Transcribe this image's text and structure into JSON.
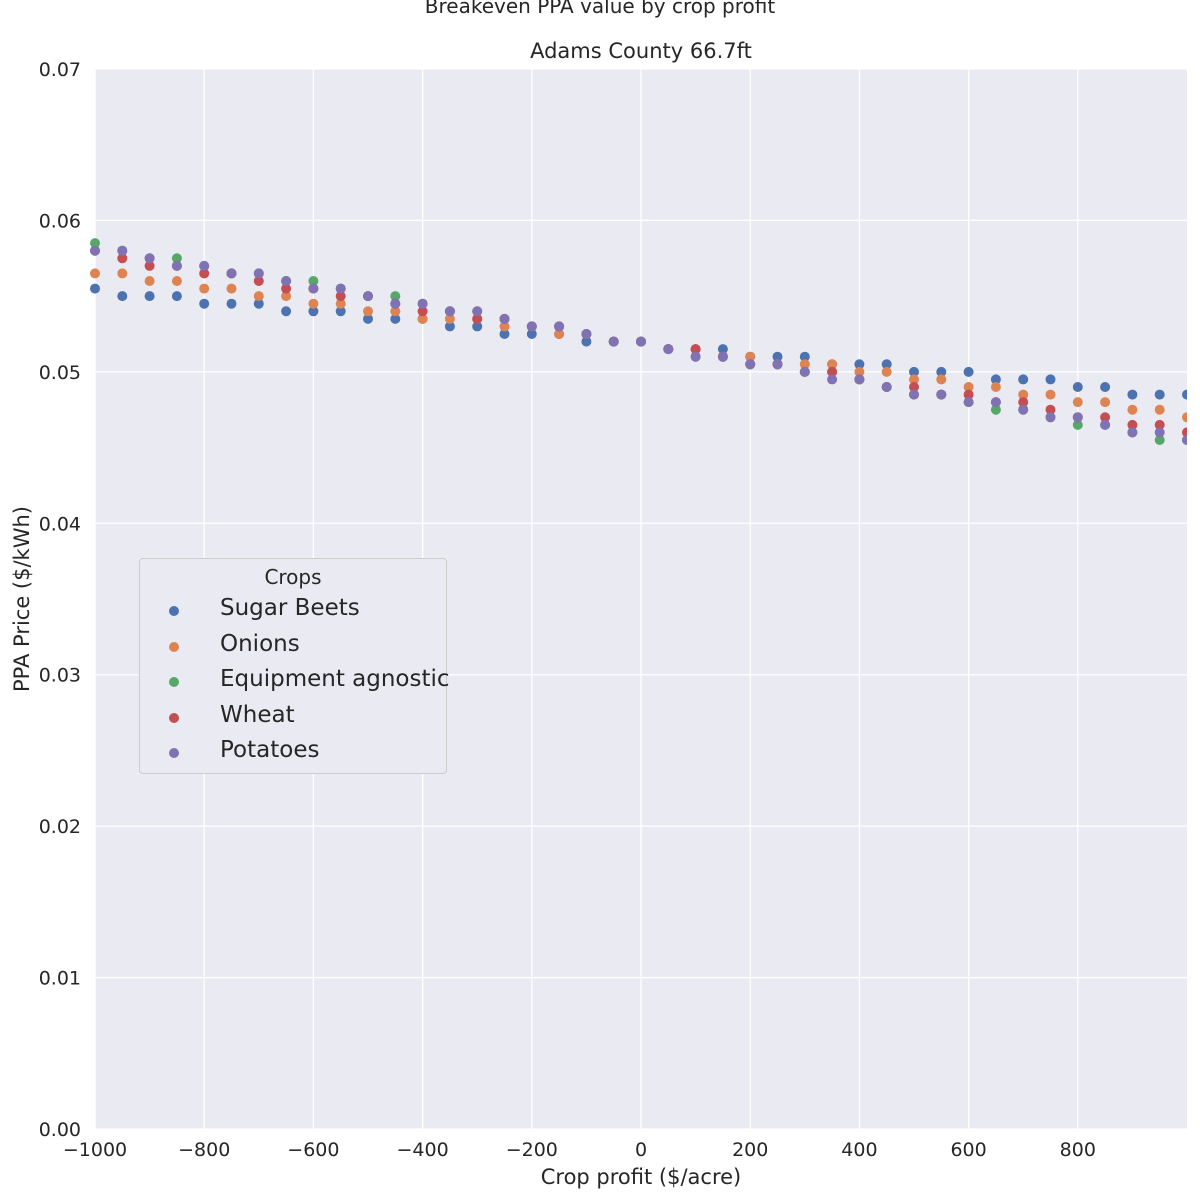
{
  "chart_data": {
    "type": "scatter",
    "suptitle": "Breakeven PPA value by crop profit",
    "title": "Adams County 66.7ft",
    "xlabel": "Crop profit ($/acre)",
    "ylabel": "PPA Price ($/kWh)",
    "xlim": [
      -1000,
      1000
    ],
    "ylim": [
      0,
      0.07
    ],
    "xticks": [
      -1000,
      -800,
      -600,
      -400,
      -200,
      0,
      200,
      400,
      600,
      800
    ],
    "xtick_labels": [
      "−1000",
      "−800",
      "−600",
      "−400",
      "−200",
      "0",
      "200",
      "400",
      "600",
      "800"
    ],
    "yticks": [
      0,
      0.01,
      0.02,
      0.03,
      0.04,
      0.05,
      0.06,
      0.07
    ],
    "ytick_labels": [
      "0.00",
      "0.01",
      "0.02",
      "0.03",
      "0.04",
      "0.05",
      "0.06",
      "0.07"
    ],
    "grid": true,
    "background": "#eaeaf2",
    "legend": {
      "title": "Crops",
      "placement": "center-left"
    },
    "x": [
      -1000,
      -950,
      -900,
      -850,
      -800,
      -750,
      -700,
      -650,
      -600,
      -550,
      -500,
      -450,
      -400,
      -350,
      -300,
      -250,
      -200,
      -150,
      -100,
      -50,
      0,
      50,
      100,
      150,
      200,
      250,
      300,
      350,
      400,
      450,
      500,
      550,
      600,
      650,
      700,
      750,
      800,
      850,
      900,
      950,
      1000
    ],
    "series": [
      {
        "name": "Sugar Beets",
        "color": "#4c72b0",
        "values": [
          0.0555,
          0.055,
          0.055,
          0.055,
          0.0545,
          0.0545,
          0.0545,
          0.054,
          0.054,
          0.054,
          0.0535,
          0.0535,
          0.0535,
          0.053,
          0.053,
          0.0525,
          0.0525,
          0.0525,
          0.052,
          0.052,
          0.052,
          0.0515,
          0.0515,
          0.0515,
          0.051,
          0.051,
          0.051,
          0.0505,
          0.0505,
          0.0505,
          0.05,
          0.05,
          0.05,
          0.0495,
          0.0495,
          0.0495,
          0.049,
          0.049,
          0.0485,
          0.0485,
          0.0485
        ]
      },
      {
        "name": "Onions",
        "color": "#dd8452",
        "values": [
          0.0565,
          0.0565,
          0.056,
          0.056,
          0.0555,
          0.0555,
          0.055,
          0.055,
          0.0545,
          0.0545,
          0.054,
          0.054,
          0.0535,
          0.0535,
          0.0535,
          0.053,
          0.053,
          0.0525,
          0.0525,
          0.052,
          0.052,
          0.0515,
          0.0515,
          0.051,
          0.051,
          0.0505,
          0.0505,
          0.0505,
          0.05,
          0.05,
          0.0495,
          0.0495,
          0.049,
          0.049,
          0.0485,
          0.0485,
          0.048,
          0.048,
          0.0475,
          0.0475,
          0.047
        ]
      },
      {
        "name": "Equipment agnostic",
        "color": "#55a868",
        "values": [
          0.0585,
          0.058,
          0.0575,
          0.0575,
          0.057,
          0.0565,
          0.0565,
          0.056,
          0.056,
          0.0555,
          0.055,
          0.055,
          0.0545,
          0.054,
          0.054,
          0.0535,
          0.053,
          0.053,
          0.0525,
          0.052,
          0.052,
          0.0515,
          0.051,
          0.051,
          0.0505,
          0.0505,
          0.05,
          0.05,
          0.0495,
          0.049,
          0.0485,
          0.0485,
          0.048,
          0.0475,
          0.0475,
          0.047,
          0.0465,
          0.0465,
          0.046,
          0.0455,
          0.0455
        ]
      },
      {
        "name": "Wheat",
        "color": "#c44e52",
        "values": [
          0.058,
          0.0575,
          0.057,
          0.057,
          0.0565,
          0.0565,
          0.056,
          0.0555,
          0.0555,
          0.055,
          0.055,
          0.0545,
          0.054,
          0.054,
          0.0535,
          0.0535,
          0.053,
          0.053,
          0.0525,
          0.052,
          0.052,
          0.0515,
          0.0515,
          0.051,
          0.0505,
          0.0505,
          0.05,
          0.05,
          0.0495,
          0.049,
          0.049,
          0.0485,
          0.0485,
          0.048,
          0.048,
          0.0475,
          0.047,
          0.047,
          0.0465,
          0.0465,
          0.046
        ]
      },
      {
        "name": "Potatoes",
        "color": "#8172b3",
        "values": [
          0.058,
          0.058,
          0.0575,
          0.057,
          0.057,
          0.0565,
          0.0565,
          0.056,
          0.0555,
          0.0555,
          0.055,
          0.0545,
          0.0545,
          0.054,
          0.054,
          0.0535,
          0.053,
          0.053,
          0.0525,
          0.052,
          0.052,
          0.0515,
          0.051,
          0.051,
          0.0505,
          0.0505,
          0.05,
          0.0495,
          0.0495,
          0.049,
          0.0485,
          0.0485,
          0.048,
          0.048,
          0.0475,
          0.047,
          0.047,
          0.0465,
          0.046,
          0.046,
          0.0455
        ]
      }
    ]
  }
}
